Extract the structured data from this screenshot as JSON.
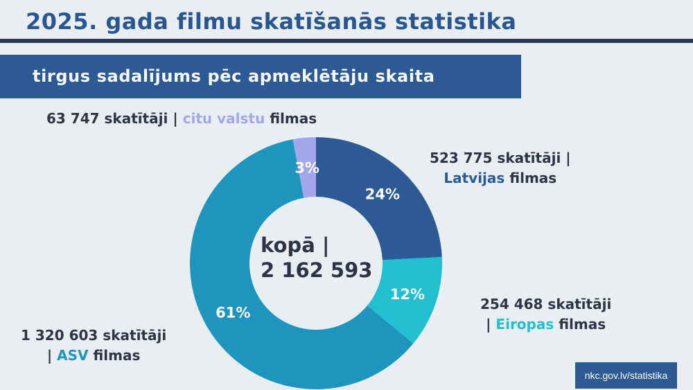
{
  "header": {
    "title": "2025. gada filmu skatīšanās statistika",
    "subtitle": "tirgus sadalījums pēc apmeklētāju skaita"
  },
  "center": {
    "line1": "kopā |",
    "line2": "2 162 593"
  },
  "labels": {
    "other": {
      "count": "63 747 skatītāji |",
      "name": "citu valstu",
      "suffix": "filmas"
    },
    "latvia": {
      "count": "523 775 skatītāji |",
      "name": "Latvijas",
      "suffix": "filmas"
    },
    "europe": {
      "count": "254 468 skatītāji",
      "prefix": "|",
      "name": "Eiropas",
      "suffix": "filmas"
    },
    "usa": {
      "count": "1 320 603 skatītāji",
      "prefix": "|",
      "name": "ASV",
      "suffix": "filmas"
    }
  },
  "source": "nkc.gov.lv/statistika",
  "chart_data": {
    "type": "pie",
    "donut": true,
    "title": "tirgus sadalījums pēc apmeklētāju skaita",
    "total": 2162593,
    "categories": [
      "Latvijas filmas",
      "Eiropas filmas",
      "ASV filmas",
      "citu valstu filmas"
    ],
    "values": [
      523775,
      254468,
      1320603,
      63747
    ],
    "percent_labels": [
      "24%",
      "12%",
      "61%",
      "3%"
    ],
    "colors": [
      "#2c5a94",
      "#22bfd3",
      "#1e95bf",
      "#a3a6eb"
    ]
  }
}
